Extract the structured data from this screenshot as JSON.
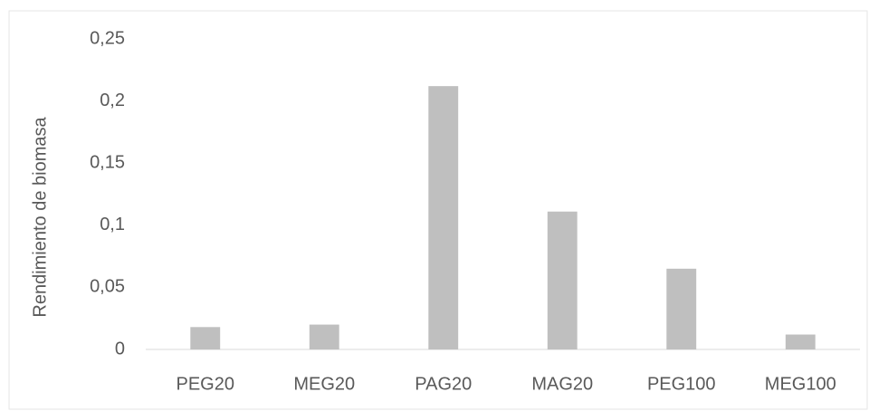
{
  "chart_data": {
    "type": "bar",
    "y_label": "Rendimiento de biomasa",
    "categories": [
      "PEG20",
      "MEG20",
      "PAG20",
      "MAG20",
      "PEG100",
      "MEG100"
    ],
    "values": [
      0.018,
      0.02,
      0.212,
      0.111,
      0.065,
      0.012
    ],
    "color": "#bfbfbf",
    "ylim": [
      0,
      0.25
    ],
    "yticks": [
      0,
      {
        "value": 0.05,
        "label": "0,05"
      },
      {
        "value": 0.1,
        "label": "0,1"
      },
      {
        "value": 0.15,
        "label": "0,15"
      },
      {
        "value": 0.2,
        "label": "0,2"
      },
      {
        "value": 0.25,
        "label": "0,25"
      }
    ],
    "grid": false
  }
}
